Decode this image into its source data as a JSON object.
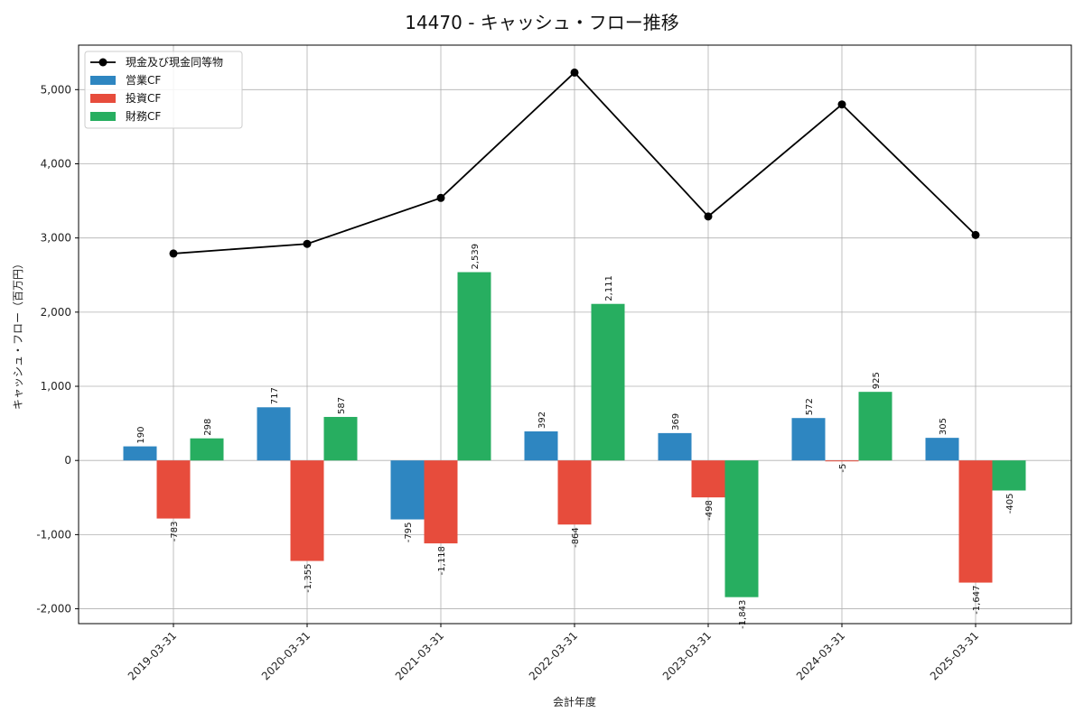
{
  "chart_data": {
    "type": "bar",
    "title": "14470 - キャッシュ・フロー推移",
    "xlabel": "会計年度",
    "ylabel": "キャッシュ・フロー（百万円）",
    "categories": [
      "2019-03-31",
      "2020-03-31",
      "2021-03-31",
      "2022-03-31",
      "2023-03-31",
      "2024-03-31",
      "2025-03-31"
    ],
    "ylim": [
      -2200,
      5600
    ],
    "yticks": [
      -2000,
      -1000,
      0,
      1000,
      2000,
      3000,
      4000,
      5000
    ],
    "ytick_labels": [
      "-2,000",
      "-1,000",
      "0",
      "1,000",
      "2,000",
      "3,000",
      "4,000",
      "5,000"
    ],
    "grid": true,
    "legend_position": "top-left",
    "series": [
      {
        "name": "営業CF",
        "kind": "bar",
        "color": "#2e86c1",
        "values": [
          190,
          717,
          -795,
          392,
          369,
          572,
          305
        ],
        "labels": [
          "190",
          "717",
          "-795",
          "392",
          "369",
          "572",
          "305"
        ]
      },
      {
        "name": "投資CF",
        "kind": "bar",
        "color": "#e74c3c",
        "values": [
          -783,
          -1355,
          -1118,
          -864,
          -498,
          -5,
          -1647
        ],
        "labels": [
          "-783",
          "-1,355",
          "-1,118",
          "-864",
          "-498",
          "-5",
          "-1,647"
        ]
      },
      {
        "name": "財務CF",
        "kind": "bar",
        "color": "#27ae60",
        "values": [
          298,
          587,
          2539,
          2111,
          -1843,
          925,
          -405
        ],
        "labels": [
          "298",
          "587",
          "2,539",
          "2,111",
          "-1,843",
          "925",
          "-405"
        ]
      },
      {
        "name": "現金及び現金同等物",
        "kind": "line",
        "color": "#000000",
        "values": [
          2790,
          2920,
          3540,
          5230,
          3290,
          4800,
          3040
        ]
      }
    ]
  }
}
